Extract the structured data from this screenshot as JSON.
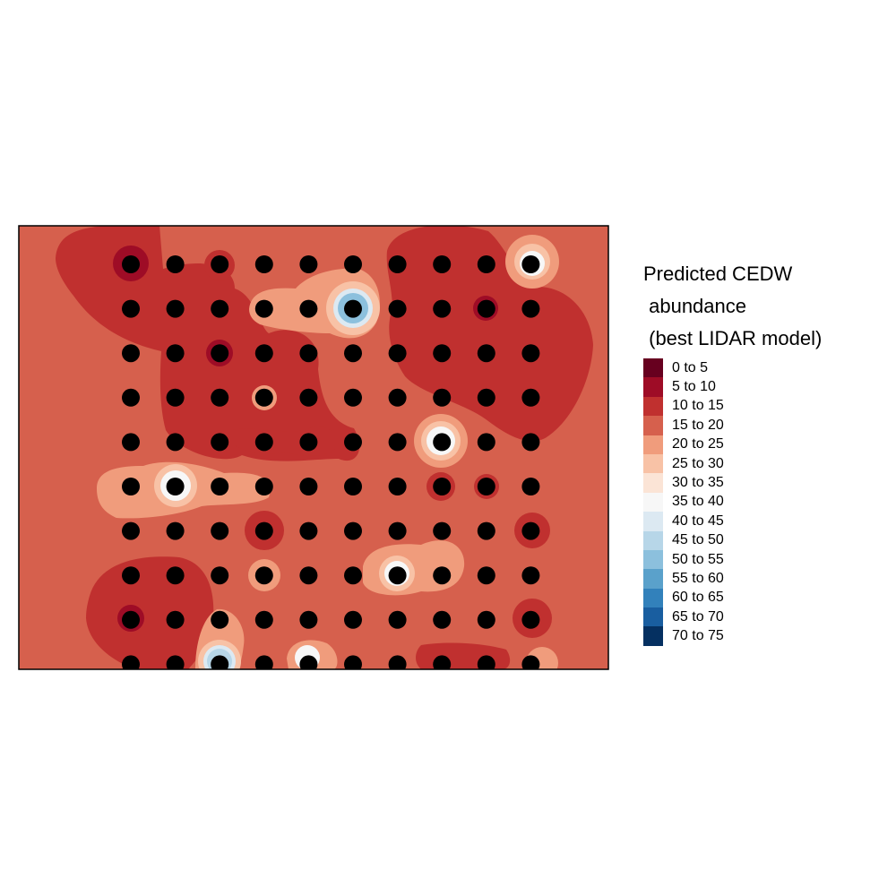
{
  "legend": {
    "title_lines": [
      "Predicted CEDW",
      " abundance",
      " (best LIDAR model)"
    ],
    "bins": [
      {
        "label": "0 to 5",
        "color": "#67001f"
      },
      {
        "label": "5 to 10",
        "color": "#9e0c26"
      },
      {
        "label": "10 to 15",
        "color": "#c0302f"
      },
      {
        "label": "15 to 20",
        "color": "#d6604d"
      },
      {
        "label": "20 to 25",
        "color": "#f09c7c"
      },
      {
        "label": "25 to 30",
        "color": "#f8c2a6"
      },
      {
        "label": "30 to 35",
        "color": "#fbe4d6"
      },
      {
        "label": "35 to 40",
        "color": "#f7f7f7"
      },
      {
        "label": "40 to 45",
        "color": "#dce9f2"
      },
      {
        "label": "45 to 50",
        "color": "#b7d6e8"
      },
      {
        "label": "50 to 55",
        "color": "#8cc0dd"
      },
      {
        "label": "55 to 60",
        "color": "#5aa1cb"
      },
      {
        "label": "60 to 65",
        "color": "#3281bb"
      },
      {
        "label": "65 to 70",
        "color": "#195ea0"
      },
      {
        "label": "70 to 75",
        "color": "#053061"
      }
    ]
  },
  "map": {
    "background_class": "15 to 20",
    "sample_point_color": "#000000",
    "grid": {
      "rows": 10,
      "cols": 10
    },
    "zones": [
      {
        "class": "10 to 15",
        "desc": "upper-left"
      },
      {
        "class": "10 to 15",
        "desc": "upper-right"
      },
      {
        "class": "10 to 15",
        "desc": "center"
      },
      {
        "class": "10 to 15",
        "desc": "lower-left"
      },
      {
        "class": "20 to 25",
        "desc": "left-middle"
      },
      {
        "class": "20 to 25",
        "desc": "top-center"
      },
      {
        "class": "20 to 25",
        "desc": "lower-center"
      },
      {
        "class": "35 to 40",
        "desc": "hotspots"
      }
    ]
  }
}
